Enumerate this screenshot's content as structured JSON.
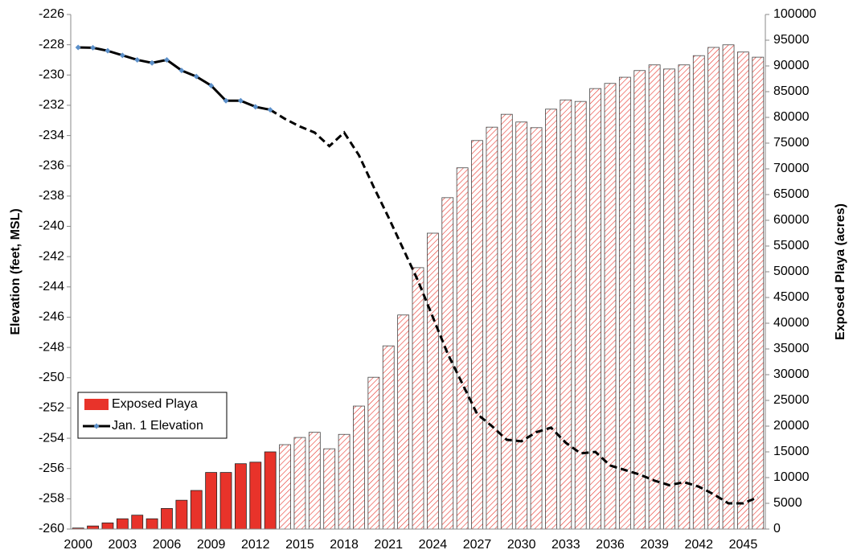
{
  "chart_data": {
    "type": "bar-line",
    "y_label": "Elevation (feet, MSL)",
    "y2_label": "Exposed Playa (acres)",
    "categories": [
      "2000",
      null,
      null,
      "2003",
      null,
      null,
      "2006",
      null,
      null,
      "2009",
      null,
      null,
      "2012",
      null,
      null,
      "2015",
      null,
      null,
      "2018",
      null,
      null,
      "2021",
      null,
      null,
      "2024",
      null,
      null,
      "2027",
      null,
      null,
      "2030",
      null,
      null,
      "2033",
      null,
      null,
      "2036",
      null,
      null,
      "2039",
      null,
      null,
      "2042",
      null,
      null,
      "2045",
      null
    ],
    "series": [
      {
        "name": "Exposed Playa",
        "type": "bar",
        "axis": "y2",
        "color": "#e8332a",
        "fill_styles": [
          "solid",
          "solid",
          "solid",
          "solid",
          "solid",
          "solid",
          "solid",
          "solid",
          "solid",
          "solid",
          "solid",
          "solid",
          "solid",
          "solid",
          "hatched",
          "hatched",
          "hatched",
          "hatched",
          "hatched",
          "hatched",
          "hatched",
          "hatched",
          "hatched",
          "hatched",
          "hatched",
          "hatched",
          "hatched",
          "hatched",
          "hatched",
          "hatched",
          "hatched",
          "hatched",
          "hatched",
          "hatched",
          "hatched",
          "hatched",
          "hatched",
          "hatched",
          "hatched",
          "hatched",
          "hatched",
          "hatched",
          "hatched",
          "hatched",
          "hatched",
          "hatched",
          "hatched"
        ],
        "values": [
          200,
          600,
          1200,
          2000,
          2700,
          2000,
          4000,
          5600,
          7500,
          11000,
          11000,
          12700,
          13000,
          15000,
          16400,
          17800,
          18800,
          15600,
          18400,
          23900,
          29500,
          35600,
          41600,
          50800,
          57500,
          64400,
          70200,
          75500,
          78100,
          80600,
          79100,
          78000,
          81600,
          83400,
          83100,
          85600,
          86600,
          87800,
          89100,
          90200,
          89400,
          90200,
          92000,
          93600,
          94100,
          92700,
          91700
        ]
      },
      {
        "name": "Jan. 1 Elevation",
        "type": "line",
        "axis": "y",
        "color": "#000000",
        "marker_color": "#5b8fc9",
        "line_styles": [
          "solid",
          "solid",
          "solid",
          "solid",
          "solid",
          "solid",
          "solid",
          "solid",
          "solid",
          "solid",
          "solid",
          "solid",
          "solid",
          "solid",
          "dashed",
          "dashed",
          "dashed",
          "dashed",
          "dashed",
          "dashed",
          "dashed",
          "dashed",
          "dashed",
          "dashed",
          "dashed",
          "dashed",
          "dashed",
          "dashed",
          "dashed",
          "dashed",
          "dashed",
          "dashed",
          "dashed",
          "dashed",
          "dashed",
          "dashed",
          "dashed",
          "dashed",
          "dashed",
          "dashed",
          "dashed",
          "dashed",
          "dashed",
          "dashed",
          "dashed",
          "dashed",
          "dashed"
        ],
        "values": [
          -228.18,
          -228.2,
          -228.4,
          -228.7,
          -229.0,
          -229.2,
          -229.0,
          -229.7,
          -230.1,
          -230.7,
          -231.7,
          -231.7,
          -232.1,
          -232.3,
          -232.9,
          -233.4,
          -233.8,
          -234.7,
          -233.8,
          -235.3,
          -237.4,
          -239.4,
          -241.5,
          -243.6,
          -246.0,
          -248.4,
          -250.4,
          -252.4,
          -253.2,
          -254.1,
          -254.2,
          -253.6,
          -253.3,
          -254.3,
          -255.0,
          -254.9,
          -255.8,
          -256.1,
          -256.4,
          -256.8,
          -257.1,
          -256.9,
          -257.2,
          -257.7,
          -258.3,
          -258.3,
          -257.9
        ]
      }
    ],
    "ylim": [
      -260,
      -226
    ],
    "yticks": [
      -260,
      -258,
      -256,
      -254,
      -252,
      -250,
      -248,
      -246,
      -244,
      -242,
      -240,
      -238,
      -236,
      -234,
      -232,
      -230,
      -228,
      -226
    ],
    "y2lim": [
      0,
      100000
    ],
    "y2ticks": [
      0,
      5000,
      10000,
      15000,
      20000,
      25000,
      30000,
      35000,
      40000,
      45000,
      50000,
      55000,
      60000,
      65000,
      70000,
      75000,
      80000,
      85000,
      90000,
      95000,
      100000
    ],
    "grid": false,
    "legend": "lower left"
  }
}
